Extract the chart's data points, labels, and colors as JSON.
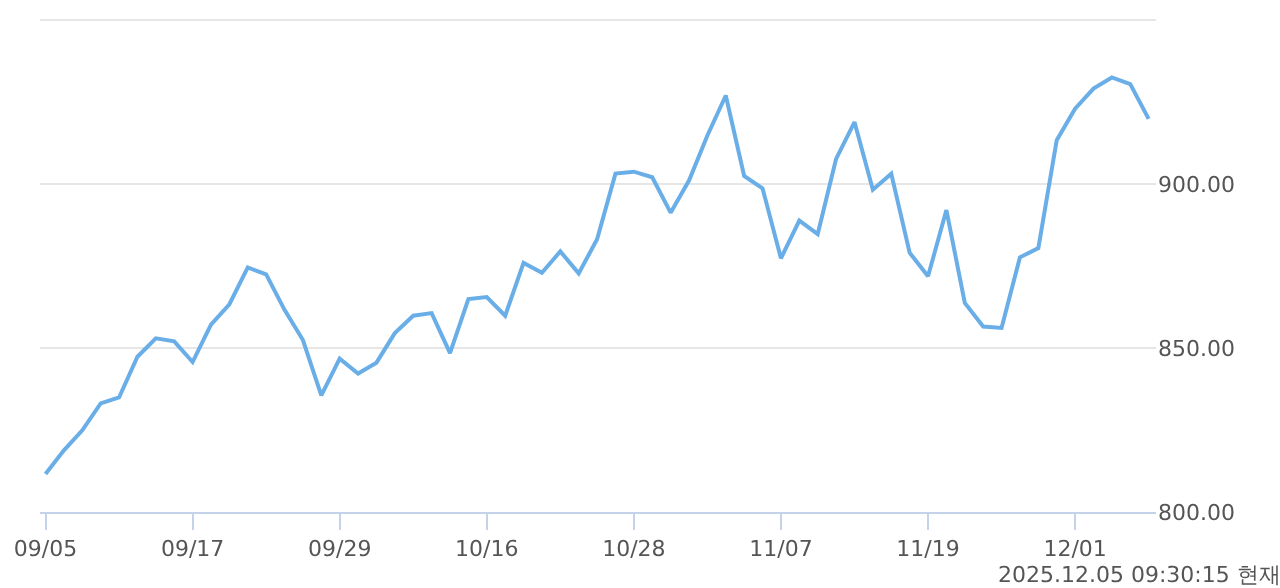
{
  "chart_data": {
    "type": "line",
    "categories": [
      "09/05",
      null,
      null,
      null,
      null,
      null,
      null,
      null,
      "09/17",
      null,
      null,
      null,
      null,
      null,
      null,
      null,
      "09/29",
      null,
      null,
      null,
      null,
      null,
      null,
      null,
      "10/16",
      null,
      null,
      null,
      null,
      null,
      null,
      null,
      "10/28",
      null,
      null,
      null,
      null,
      null,
      null,
      null,
      "11/07",
      null,
      null,
      null,
      null,
      null,
      null,
      null,
      "11/19",
      null,
      null,
      null,
      null,
      null,
      null,
      null,
      "12/01",
      null,
      null,
      null,
      null
    ],
    "series": [
      {
        "color": "#6aaee8",
        "values": [
          811.6,
          818.8,
          824.9,
          833.1,
          834.9,
          847.3,
          852.9,
          852.0,
          845.7,
          857.1,
          863.3,
          874.5,
          872.4,
          861.6,
          852.4,
          835.5,
          846.7,
          842.2,
          845.5,
          854.5,
          859.8,
          860.6,
          848.4,
          864.9,
          865.5,
          859.8,
          875.9,
          872.9,
          879.4,
          872.7,
          883.1,
          903.1,
          903.7,
          902.0,
          891.2,
          901.0,
          914.7,
          926.9,
          902.4,
          898.6,
          877.3,
          888.8,
          884.7,
          907.6,
          918.8,
          898.2,
          903.1,
          879.0,
          871.8,
          892.0,
          863.7,
          856.5,
          856.1,
          877.6,
          880.4,
          913.3,
          922.9,
          929.0,
          932.4,
          930.4,
          919.8
        ]
      }
    ],
    "ylim": [
      800,
      956
    ],
    "yticks": [
      {
        "value": 800,
        "label": "800.00"
      },
      {
        "value": 850,
        "label": "850.00"
      },
      {
        "value": 900,
        "label": "900.00"
      },
      {
        "value": 950,
        "label": null
      }
    ],
    "grid": "y",
    "marker": "none",
    "line_style": "solid",
    "annotations": [
      "2025.12.05 09:30:15 현재"
    ]
  }
}
